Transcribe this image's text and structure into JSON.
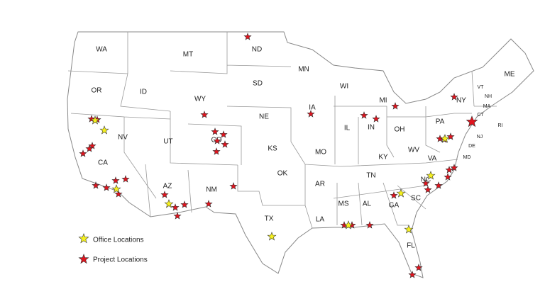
{
  "states": [
    "WA",
    "MT",
    "ND",
    "MN",
    "WI",
    "MI",
    "ME",
    "VT",
    "NH",
    "MA",
    "NY",
    "CT",
    "RI",
    "OR",
    "ID",
    "WY",
    "SD",
    "IA",
    "NE",
    "IL",
    "IN",
    "OH",
    "PA",
    "NJ",
    "NV",
    "UT",
    "CO",
    "KS",
    "MO",
    "KY",
    "WV",
    "VA",
    "DE",
    "MD",
    "CA",
    "OK",
    "TN",
    "NC",
    "AR",
    "AZ",
    "NM",
    "SC",
    "GA",
    "AL",
    "MS",
    "LA",
    "TX",
    "FL"
  ],
  "legend": {
    "office": "Office Locations",
    "project": "Project Locations"
  }
}
